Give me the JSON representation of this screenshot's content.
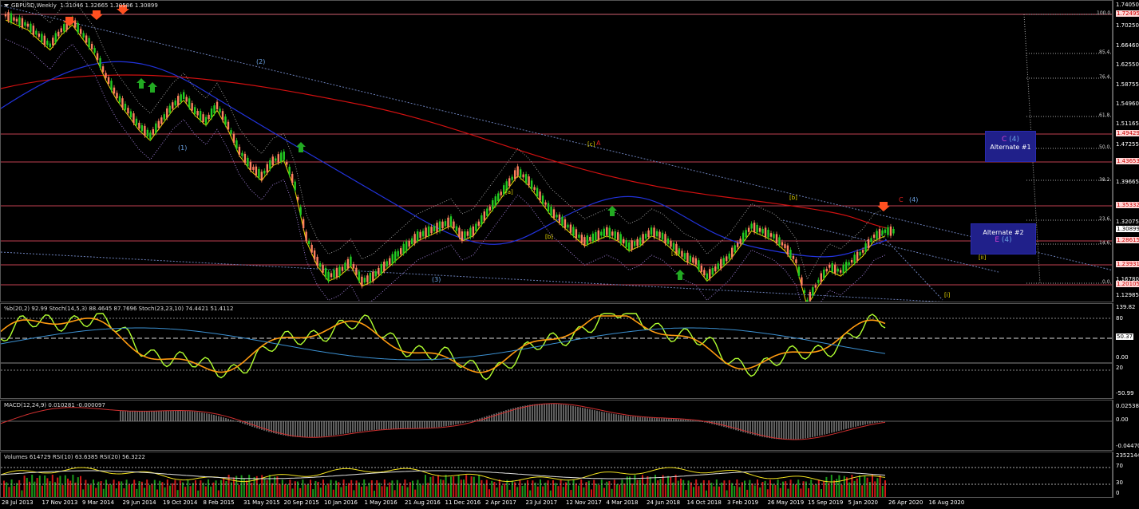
{
  "main": {
    "title_symbol": "GBPUSD,Weekly",
    "title_ohlc": "1.31046 1.32665 1.30586 1.30899",
    "price_labels": [
      "1.74050",
      "1.72495",
      "1.70250",
      "1.66460",
      "1.62550",
      "1.58755",
      "1.54960",
      "1.51165",
      "1.49429",
      "1.47255",
      "1.43653",
      "1.39665",
      "1.35332",
      "1.32075",
      "1.30899",
      "1.28615",
      "1.23931",
      "1.20105",
      "1.16780",
      "1.12985"
    ],
    "price_highlight": [
      "1.72495",
      "1.49429",
      "1.43653",
      "1.35332",
      "1.28615",
      "1.23931",
      "1.20105"
    ],
    "price_current": "1.30899",
    "fib_levels": [
      "100.0",
      "85.4",
      "76.4",
      "61.8",
      "50.0",
      "38.2",
      "23.6",
      "14.6",
      "0.0"
    ],
    "wave_labels": {
      "w1": "(1)",
      "w2": "(2)",
      "w3": "(3)",
      "w4": "(4)",
      "a_sub": "[a]",
      "b_sub": "[b]",
      "c_sub": "[c]",
      "big_a": "A",
      "a_sub2": "[a]",
      "b_sub2": "[b]",
      "b_sub3": "[b]",
      "c_big": "C",
      "i_low": "[i]",
      "ii_low": "[ii]"
    },
    "alt1": {
      "wave": "C",
      "degree": "(4)",
      "label": "Alternate #1"
    },
    "alt2": {
      "label": "Alternate #2",
      "wave": "E",
      "degree": "(4)"
    },
    "colors": {
      "bull": "#22cc22",
      "bear": "#ff8060",
      "ma_red": "#d01010",
      "ma_blue": "#2233dd",
      "ma_yellow": "#e8d800",
      "hline": "#e07070",
      "accent_arrow": "#ff5020",
      "up_arrow": "#22aa22"
    }
  },
  "stoch": {
    "title": "%b(20,2) 92.99  Stoch(14,5,3) 88.4645 87.7696  Stoch(23,23,10) 74.4421 51.4112",
    "scale": [
      "139.82",
      "80",
      "50.37",
      "0.00",
      "20",
      "-50.99"
    ]
  },
  "macd": {
    "title": "MACD(12,24,9) 0.010281 -0.000097",
    "scale": [
      "0.025386",
      "0.00",
      "-0.044702"
    ]
  },
  "volume": {
    "title": "Volumes 614729  RSI(10) 63.6385  RSI(20) 56.3222",
    "scale": [
      "2352144",
      "70",
      "30",
      "0"
    ]
  },
  "x_axis": [
    "28 Jul 2013",
    "17 Nov 2013",
    "9 Mar 2014",
    "29 Jun 2014",
    "19 Oct 2014",
    "8 Feb 2015",
    "31 May 2015",
    "20 Sep 2015",
    "10 Jan 2016",
    "1 May 2016",
    "21 Aug 2016",
    "11 Dec 2016",
    "2 Apr 2017",
    "23 Jul 2017",
    "12 Nov 2017",
    "4 Mar 2018",
    "24 Jun 2018",
    "14 Oct 2018",
    "3 Feb 2019",
    "26 May 2019",
    "15 Sep 2019",
    "5 Jan 2020",
    "26 Apr 2020",
    "16 Aug 2020"
  ]
}
